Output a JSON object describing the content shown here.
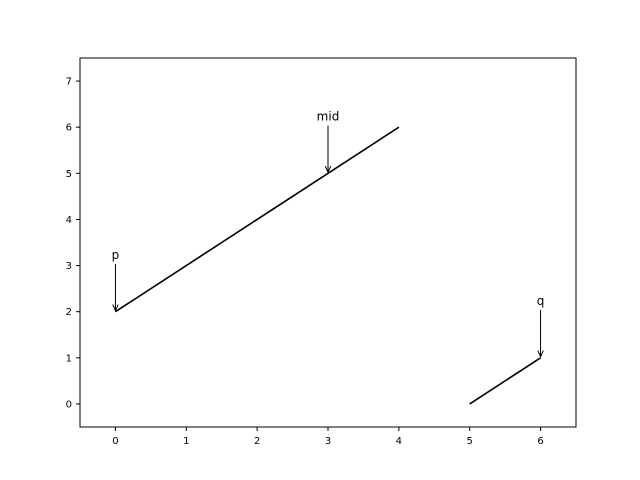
{
  "chart_data": {
    "type": "line",
    "title": "",
    "xlabel": "",
    "ylabel": "",
    "xlim": [
      -0.5,
      6.5
    ],
    "ylim": [
      -0.5,
      7.5
    ],
    "x_ticks": [
      {
        "value": 0,
        "label": "0"
      },
      {
        "value": 1,
        "label": "1"
      },
      {
        "value": 2,
        "label": "2"
      },
      {
        "value": 3,
        "label": "3"
      },
      {
        "value": 4,
        "label": "4"
      },
      {
        "value": 5,
        "label": "5"
      },
      {
        "value": 6,
        "label": "6"
      }
    ],
    "y_ticks": [
      {
        "value": 0,
        "label": "0"
      },
      {
        "value": 1,
        "label": "1"
      },
      {
        "value": 2,
        "label": "2"
      },
      {
        "value": 3,
        "label": "3"
      },
      {
        "value": 4,
        "label": "4"
      },
      {
        "value": 5,
        "label": "5"
      },
      {
        "value": 6,
        "label": "6"
      },
      {
        "value": 7,
        "label": "7"
      }
    ],
    "grid": false,
    "legend": false,
    "line_color": "#000000",
    "series": [
      {
        "points": [
          [
            0,
            2
          ],
          [
            4,
            6
          ]
        ]
      },
      {
        "points": [
          [
            5,
            0
          ],
          [
            6,
            1
          ]
        ]
      }
    ],
    "annotations": [
      {
        "text": "p",
        "point": [
          0,
          2
        ],
        "text_pos": [
          0,
          3.1
        ]
      },
      {
        "text": "mid",
        "point": [
          3,
          5
        ],
        "text_pos": [
          3,
          6.1
        ]
      },
      {
        "text": "q",
        "point": [
          6,
          1
        ],
        "text_pos": [
          6,
          2.1
        ]
      }
    ]
  }
}
